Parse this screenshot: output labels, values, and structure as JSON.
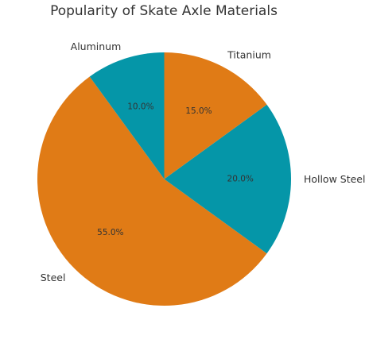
{
  "chart_data": {
    "type": "pie",
    "title": "Popularity of Skate Axle Materials",
    "categories": [
      "Steel",
      "Hollow Steel",
      "Titanium",
      "Aluminum"
    ],
    "values": [
      55.0,
      20.0,
      15.0,
      10.0
    ],
    "value_labels": [
      "55.0%",
      "20.0%",
      "15.0%",
      "10.0%"
    ],
    "colors": [
      "#e07b16",
      "#0596a8",
      "#e07b16",
      "#0596a8"
    ],
    "start_angle_deg": 126,
    "direction": "counterclockwise",
    "legend": "none"
  }
}
